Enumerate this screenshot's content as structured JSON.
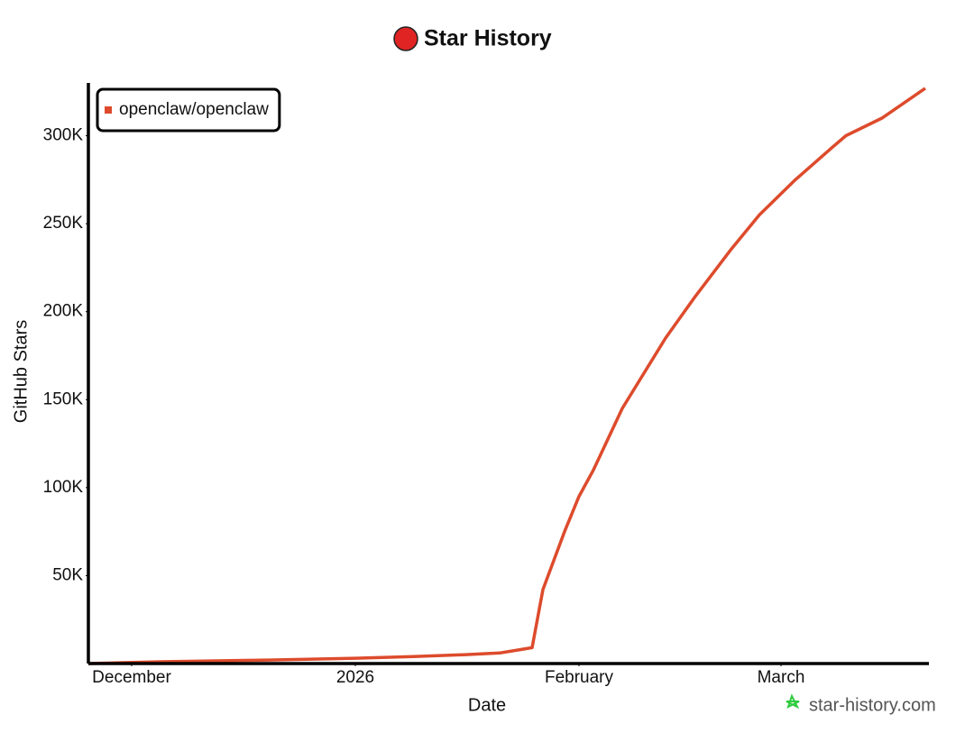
{
  "chart_data": {
    "type": "line",
    "title": "Star History",
    "x_label": "Date",
    "y_label": "GitHub Stars",
    "watermark": "star-history.com",
    "x": [
      0,
      10,
      25,
      37,
      45,
      52,
      57,
      60,
      61.5,
      63,
      66,
      68,
      70,
      74,
      80,
      84,
      89,
      93,
      98,
      103,
      105,
      110,
      116
    ],
    "series": [
      {
        "name": "openclaw/openclaw",
        "color": "#dd4b2c",
        "values": [
          0,
          1000,
          2000,
          3000,
          4000,
          5000,
          6000,
          8000,
          9000,
          42000,
          75000,
          95000,
          110000,
          145000,
          185000,
          208000,
          235000,
          255000,
          275000,
          293000,
          300000,
          310000,
          327000
        ]
      }
    ],
    "xlim": [
      0,
      116.5
    ],
    "xticks": [
      {
        "value": 6,
        "label": "December"
      },
      {
        "value": 37,
        "label": "2026"
      },
      {
        "value": 68,
        "label": "February"
      },
      {
        "value": 96,
        "label": "March"
      }
    ],
    "ylim": [
      0,
      330000
    ],
    "yticks": [
      {
        "value": 50000,
        "label": "50K"
      },
      {
        "value": 100000,
        "label": "100K"
      },
      {
        "value": 150000,
        "label": "150K"
      },
      {
        "value": 200000,
        "label": "200K"
      },
      {
        "value": 250000,
        "label": "250K"
      },
      {
        "value": 300000,
        "label": "300K"
      }
    ],
    "legend": "top-left"
  }
}
